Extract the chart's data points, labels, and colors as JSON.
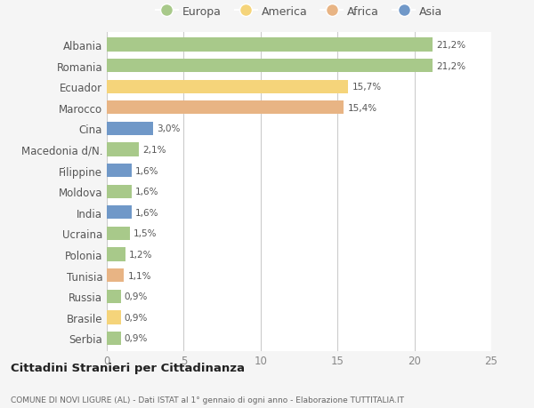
{
  "countries": [
    "Albania",
    "Romania",
    "Ecuador",
    "Marocco",
    "Cina",
    "Macedonia d/N.",
    "Filippine",
    "Moldova",
    "India",
    "Ucraina",
    "Polonia",
    "Tunisia",
    "Russia",
    "Brasile",
    "Serbia"
  ],
  "values": [
    21.2,
    21.2,
    15.7,
    15.4,
    3.0,
    2.1,
    1.6,
    1.6,
    1.6,
    1.5,
    1.2,
    1.1,
    0.9,
    0.9,
    0.9
  ],
  "labels": [
    "21,2%",
    "21,2%",
    "15,7%",
    "15,4%",
    "3,0%",
    "2,1%",
    "1,6%",
    "1,6%",
    "1,6%",
    "1,5%",
    "1,2%",
    "1,1%",
    "0,9%",
    "0,9%",
    "0,9%"
  ],
  "continents": [
    "Europa",
    "Europa",
    "America",
    "Africa",
    "Asia",
    "Europa",
    "Asia",
    "Europa",
    "Asia",
    "Europa",
    "Europa",
    "Africa",
    "Europa",
    "America",
    "Europa"
  ],
  "colors": {
    "Europa": "#a8c98a",
    "America": "#f5d47a",
    "Africa": "#e8b484",
    "Asia": "#7098c8"
  },
  "legend_order": [
    "Europa",
    "America",
    "Africa",
    "Asia"
  ],
  "title1": "Cittadini Stranieri per Cittadinanza",
  "title2": "COMUNE DI NOVI LIGURE (AL) - Dati ISTAT al 1° gennaio di ogni anno - Elaborazione TUTTITALIA.IT",
  "xlim": [
    0,
    25
  ],
  "xticks": [
    0,
    5,
    10,
    15,
    20,
    25
  ],
  "background_color": "#f5f5f5",
  "plot_bg_color": "#ffffff"
}
